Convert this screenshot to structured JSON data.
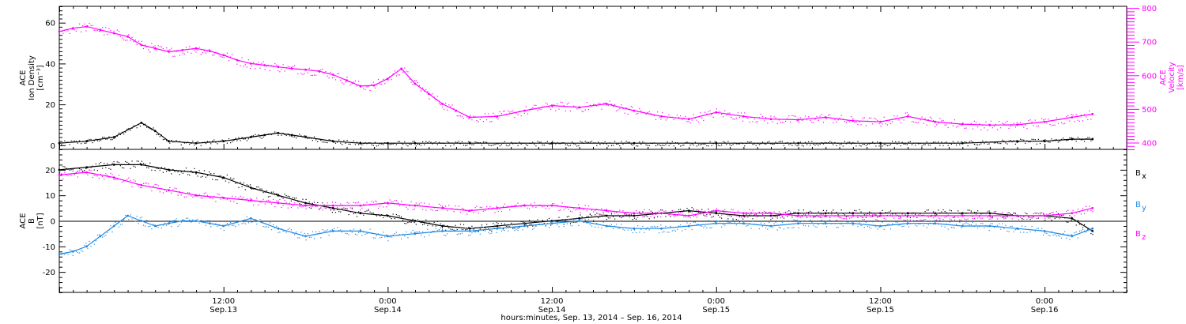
{
  "colors": {
    "density": "#000000",
    "velocity": "#ff00ff",
    "bx": "#000000",
    "by": "#1e88e5",
    "bz": "#ff00ff",
    "axes": "#000000"
  },
  "x_axis": {
    "title": "hours:minutes, Sep. 13, 2014 – Sep. 16, 2014",
    "range_hours": [
      -12,
      66
    ],
    "ticks": [
      {
        "t": 0,
        "time": "12:00",
        "date": "Sep.13"
      },
      {
        "t": 12,
        "time": "0:00",
        "date": "Sep.14"
      },
      {
        "t": 24,
        "time": "12:00",
        "date": "Sep.14"
      },
      {
        "t": 36,
        "time": "0:00",
        "date": "Sep.15"
      },
      {
        "t": 48,
        "time": "12:00",
        "date": "Sep.15"
      },
      {
        "t": 60,
        "time": "0:00",
        "date": "Sep.16"
      }
    ]
  },
  "chart_data": [
    {
      "type": "scatter",
      "panel": "top",
      "left_axis": {
        "label_lines": [
          "ACE",
          "Ion Density",
          "[cm⁻³]"
        ],
        "ylim": [
          -2,
          68
        ],
        "ticks": [
          0,
          20,
          40,
          60
        ]
      },
      "right_axis": {
        "label_lines": [
          "ACE",
          "Velocity",
          "[km/s]"
        ],
        "ylim": [
          380,
          805
        ],
        "ticks": [
          400,
          500,
          600,
          700,
          800
        ]
      },
      "series": [
        {
          "key": "density",
          "axis": "left",
          "t": [
            -12,
            -10,
            -8,
            -6,
            -5,
            -4,
            -2,
            0,
            2,
            3,
            4,
            5,
            6,
            8,
            10,
            12,
            14,
            18,
            24,
            30,
            36,
            42,
            48,
            54,
            58,
            60,
            62,
            63.5
          ],
          "values": [
            1,
            2,
            4,
            11,
            7,
            2,
            1,
            2,
            4,
            5,
            6,
            5,
            4,
            2,
            1,
            1,
            1,
            1,
            1,
            1,
            1,
            1,
            1,
            1,
            2,
            2,
            3,
            3
          ]
        },
        {
          "key": "velocity",
          "axis": "right",
          "t": [
            -12,
            -11,
            -10,
            -9,
            -8,
            -7,
            -6,
            -5,
            -4,
            -3,
            -2,
            -1,
            0,
            1,
            2,
            3,
            4,
            5,
            6,
            7,
            8,
            9,
            10,
            11,
            12,
            13,
            14,
            15,
            16,
            17,
            18,
            20,
            22,
            24,
            26,
            28,
            30,
            32,
            34,
            36,
            38,
            40,
            42,
            44,
            46,
            48,
            50,
            52,
            54,
            56,
            58,
            60,
            62,
            63.5
          ],
          "values": [
            730,
            740,
            745,
            735,
            725,
            715,
            690,
            680,
            670,
            675,
            680,
            672,
            660,
            645,
            635,
            630,
            625,
            620,
            617,
            612,
            602,
            585,
            568,
            570,
            590,
            620,
            575,
            545,
            515,
            495,
            475,
            478,
            495,
            510,
            505,
            515,
            495,
            478,
            470,
            490,
            478,
            470,
            468,
            475,
            465,
            462,
            478,
            462,
            455,
            452,
            453,
            462,
            475,
            485
          ]
        }
      ]
    },
    {
      "type": "scatter",
      "panel": "bottom",
      "left_axis": {
        "label_lines": [
          "ACE",
          "B",
          "[nT]"
        ],
        "ylim": [
          -28,
          28
        ],
        "ticks": [
          -20,
          -10,
          0,
          10,
          20
        ]
      },
      "series": [
        {
          "key": "bx",
          "name": "B",
          "subscript": "x",
          "t": [
            -12,
            -10,
            -8,
            -6,
            -4,
            -2,
            0,
            2,
            4,
            6,
            8,
            10,
            12,
            14,
            16,
            18,
            20,
            22,
            24,
            26,
            28,
            30,
            32,
            34,
            36,
            38,
            40,
            42,
            44,
            46,
            48,
            50,
            52,
            54,
            56,
            58,
            60,
            62,
            63.5
          ],
          "values": [
            20,
            21,
            22,
            22,
            20,
            19,
            17,
            13,
            10,
            7,
            5,
            3,
            2,
            0,
            -2,
            -3,
            -2,
            -1,
            0,
            1,
            2,
            2,
            3,
            4,
            3,
            2,
            2,
            3,
            3,
            3,
            3,
            3,
            3,
            3,
            3,
            2,
            2,
            1,
            -4
          ]
        },
        {
          "key": "by",
          "name": "B",
          "subscript": "y",
          "t": [
            -12,
            -11,
            -10,
            -9,
            -8,
            -7,
            -6,
            -5,
            -4,
            -3,
            -2,
            -1,
            0,
            2,
            4,
            6,
            8,
            10,
            12,
            14,
            16,
            18,
            20,
            22,
            24,
            26,
            28,
            30,
            32,
            34,
            36,
            38,
            40,
            42,
            44,
            46,
            48,
            50,
            52,
            54,
            56,
            58,
            60,
            62,
            63.5
          ],
          "values": [
            -13,
            -12,
            -10,
            -6,
            -2,
            2,
            0,
            -2,
            -1,
            0,
            0,
            -1,
            -2,
            1,
            -3,
            -6,
            -4,
            -4,
            -6,
            -5,
            -4,
            -4,
            -3,
            -2,
            -1,
            0,
            -2,
            -3,
            -3,
            -2,
            -1,
            -1,
            -2,
            -1,
            -1,
            -1,
            -2,
            -1,
            -1,
            -2,
            -2,
            -3,
            -4,
            -6,
            -3
          ]
        },
        {
          "key": "bz",
          "name": "B",
          "subscript": "z",
          "t": [
            -12,
            -10,
            -8,
            -6,
            -4,
            -2,
            0,
            2,
            4,
            6,
            8,
            10,
            12,
            14,
            16,
            18,
            20,
            22,
            24,
            26,
            28,
            30,
            32,
            34,
            36,
            38,
            40,
            42,
            44,
            46,
            48,
            50,
            52,
            54,
            56,
            58,
            60,
            62,
            63.5
          ],
          "values": [
            18,
            19,
            17,
            14,
            12,
            10,
            9,
            8,
            7,
            6,
            6,
            6,
            7,
            6,
            5,
            4,
            5,
            6,
            6,
            5,
            4,
            3,
            3,
            2,
            4,
            3,
            3,
            2,
            2,
            2,
            2,
            2,
            2,
            2,
            2,
            2,
            2,
            3,
            5
          ]
        }
      ]
    }
  ]
}
